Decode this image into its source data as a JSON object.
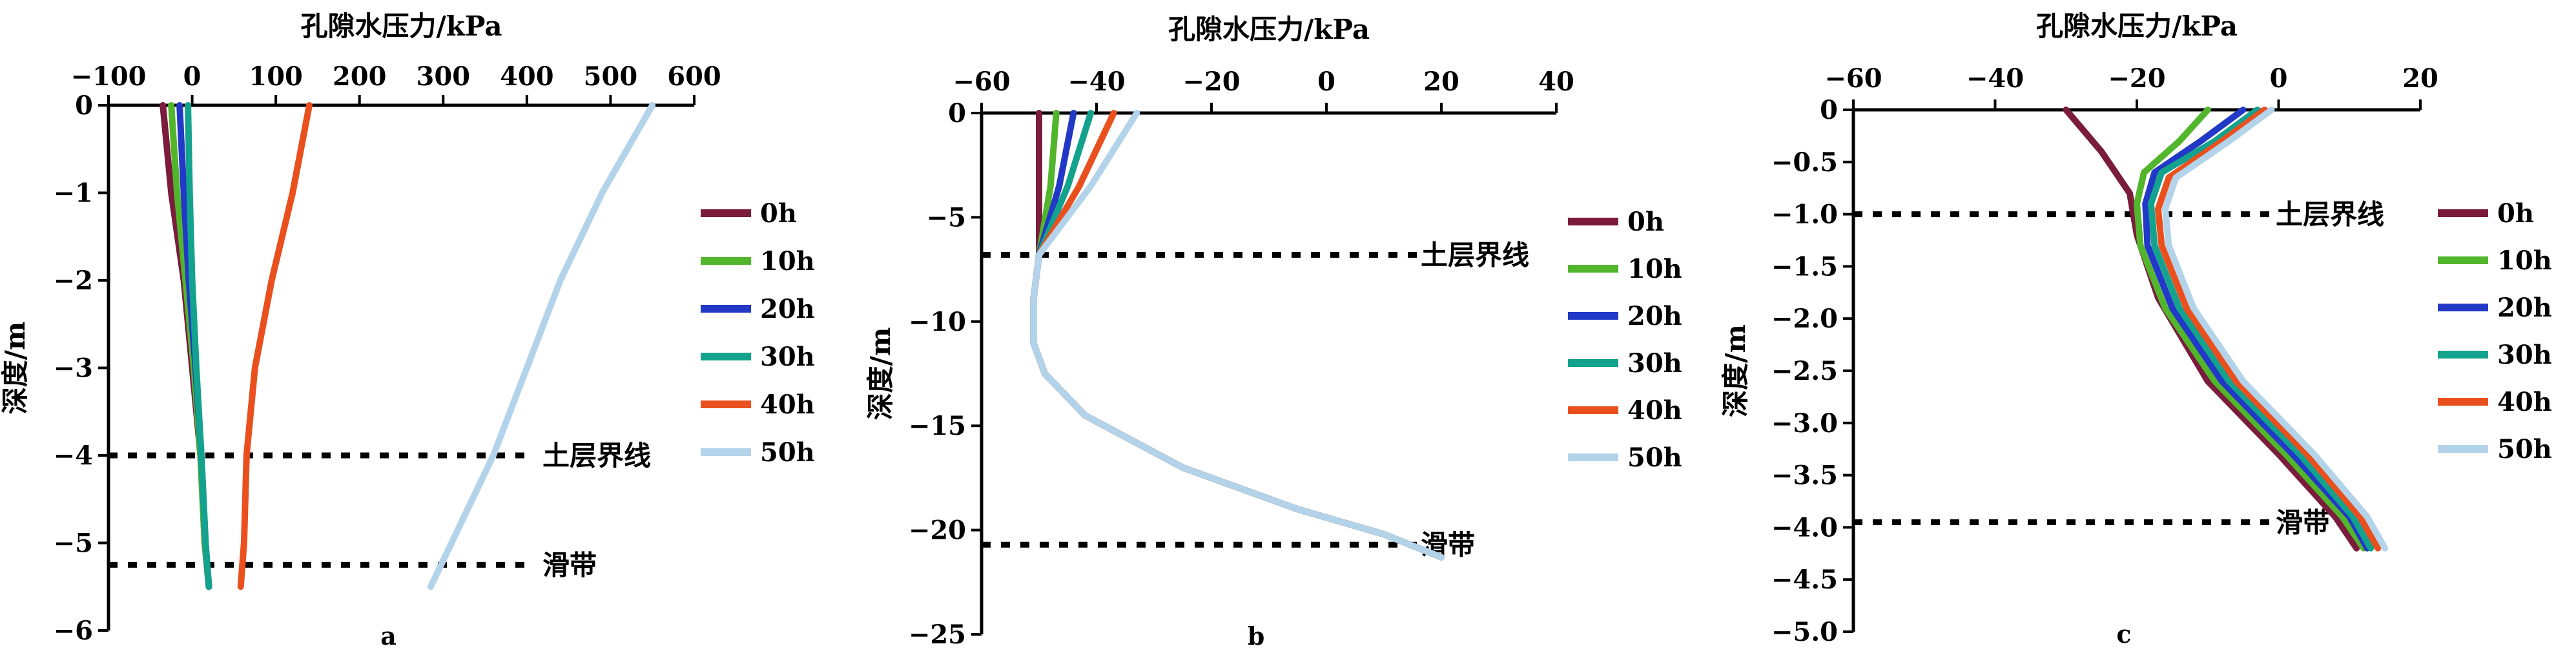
{
  "chart_data": [
    {
      "type": "line",
      "panel_label": "a",
      "xlabel": "孔隙水压力/kPa",
      "ylabel": "深度/m",
      "x_position": "top",
      "xlim": [
        -100,
        600
      ],
      "ylim": [
        -6,
        0
      ],
      "xticks": [
        -100,
        0,
        100,
        200,
        300,
        400,
        500,
        600
      ],
      "xtick_labels": [
        "−100",
        "0",
        "100",
        "200",
        "300",
        "400",
        "500",
        "600"
      ],
      "yticks": [
        0,
        -1,
        -2,
        -3,
        -4,
        -5,
        -6
      ],
      "ytick_labels": [
        "0",
        "−1",
        "−2",
        "−3",
        "−4",
        "−5",
        "−6"
      ],
      "grid": false,
      "legend_position": "right",
      "annotations": [
        {
          "text": "土层界线",
          "y": -4.0
        },
        {
          "text": "滑带",
          "y": -5.25
        }
      ],
      "series": [
        {
          "name": "0h",
          "color": "#7b1c3c",
          "points": [
            [
              -35,
              0
            ],
            [
              -25,
              -1
            ],
            [
              -10,
              -2
            ],
            [
              0,
              -3
            ],
            [
              10,
              -4
            ],
            [
              15,
              -5
            ],
            [
              20,
              -5.5
            ]
          ]
        },
        {
          "name": "10h",
          "color": "#52b62c",
          "points": [
            [
              -25,
              0
            ],
            [
              -18,
              -1
            ],
            [
              -8,
              -2
            ],
            [
              2,
              -3
            ],
            [
              10,
              -4
            ],
            [
              15,
              -5
            ],
            [
              20,
              -5.5
            ]
          ]
        },
        {
          "name": "20h",
          "color": "#2238c6",
          "points": [
            [
              -15,
              0
            ],
            [
              -10,
              -1
            ],
            [
              -4,
              -2
            ],
            [
              4,
              -3
            ],
            [
              11,
              -4
            ],
            [
              16,
              -5
            ],
            [
              20,
              -5.5
            ]
          ]
        },
        {
          "name": "30h",
          "color": "#13a28d",
          "points": [
            [
              -5,
              0
            ],
            [
              -3,
              -1
            ],
            [
              0,
              -2
            ],
            [
              5,
              -3
            ],
            [
              11,
              -4
            ],
            [
              16,
              -5
            ],
            [
              20,
              -5.5
            ]
          ]
        },
        {
          "name": "40h",
          "color": "#e9501e",
          "points": [
            [
              140,
              0
            ],
            [
              120,
              -1
            ],
            [
              95,
              -2
            ],
            [
              75,
              -3
            ],
            [
              65,
              -4
            ],
            [
              62,
              -5
            ],
            [
              58,
              -5.5
            ]
          ]
        },
        {
          "name": "50h",
          "color": "#b3d3ea",
          "points": [
            [
              550,
              0
            ],
            [
              490,
              -1
            ],
            [
              440,
              -2
            ],
            [
              400,
              -3
            ],
            [
              360,
              -4
            ],
            [
              310,
              -5
            ],
            [
              285,
              -5.5
            ]
          ]
        }
      ]
    },
    {
      "type": "line",
      "panel_label": "b",
      "xlabel": "孔隙水压力/kPa",
      "ylabel": "深度/m",
      "x_position": "top",
      "xlim": [
        -60,
        40
      ],
      "ylim": [
        -25,
        0
      ],
      "xticks": [
        -60,
        -40,
        -20,
        0,
        20,
        40
      ],
      "xtick_labels": [
        "−60",
        "−40",
        "−20",
        "0",
        "20",
        "40"
      ],
      "yticks": [
        0,
        -5,
        -10,
        -15,
        -20,
        -25
      ],
      "ytick_labels": [
        "0",
        "−5",
        "−10",
        "−15",
        "−20",
        "−25"
      ],
      "grid": false,
      "legend_position": "right",
      "annotations": [
        {
          "text": "土层界线",
          "y": -6.8
        },
        {
          "text": "滑带",
          "y": -20.7
        }
      ],
      "series": [
        {
          "name": "0h",
          "color": "#7b1c3c",
          "points": [
            [
              -50,
              0
            ],
            [
              -50,
              -3
            ],
            [
              -50,
              -6.8
            ],
            [
              -51,
              -9
            ],
            [
              -51,
              -11
            ],
            [
              -49,
              -12.5
            ],
            [
              -42,
              -14.5
            ],
            [
              -25,
              -17
            ],
            [
              -5,
              -19
            ],
            [
              10,
              -20.2
            ],
            [
              20,
              -21.3
            ]
          ]
        },
        {
          "name": "10h",
          "color": "#52b62c",
          "points": [
            [
              -47,
              0
            ],
            [
              -48,
              -3.5
            ],
            [
              -50,
              -6.8
            ],
            [
              -51,
              -9
            ],
            [
              -51,
              -11
            ],
            [
              -49,
              -12.5
            ],
            [
              -42,
              -14.5
            ],
            [
              -25,
              -17
            ],
            [
              -5,
              -19
            ],
            [
              10,
              -20.2
            ],
            [
              20,
              -21.3
            ]
          ]
        },
        {
          "name": "20h",
          "color": "#2238c6",
          "points": [
            [
              -44,
              0
            ],
            [
              -46.5,
              -3.5
            ],
            [
              -50,
              -6.8
            ],
            [
              -51,
              -9
            ],
            [
              -51,
              -11
            ],
            [
              -49,
              -12.5
            ],
            [
              -42,
              -14.5
            ],
            [
              -25,
              -17
            ],
            [
              -5,
              -19
            ],
            [
              10,
              -20.2
            ],
            [
              20,
              -21.3
            ]
          ]
        },
        {
          "name": "30h",
          "color": "#13a28d",
          "points": [
            [
              -41,
              0
            ],
            [
              -45,
              -3.5
            ],
            [
              -50,
              -6.8
            ],
            [
              -51,
              -9
            ],
            [
              -51,
              -11
            ],
            [
              -49,
              -12.5
            ],
            [
              -42,
              -14.5
            ],
            [
              -25,
              -17
            ],
            [
              -5,
              -19
            ],
            [
              10,
              -20.2
            ],
            [
              20,
              -21.3
            ]
          ]
        },
        {
          "name": "40h",
          "color": "#e9501e",
          "points": [
            [
              -37,
              0
            ],
            [
              -43,
              -3.5
            ],
            [
              -50,
              -6.8
            ],
            [
              -51,
              -9
            ],
            [
              -51,
              -11
            ],
            [
              -49,
              -12.5
            ],
            [
              -42,
              -14.5
            ],
            [
              -25,
              -17
            ],
            [
              -5,
              -19
            ],
            [
              10,
              -20.2
            ],
            [
              20,
              -21.3
            ]
          ]
        },
        {
          "name": "50h",
          "color": "#b3d3ea",
          "points": [
            [
              -33,
              0
            ],
            [
              -41,
              -3.5
            ],
            [
              -50,
              -6.8
            ],
            [
              -51,
              -9
            ],
            [
              -51,
              -11
            ],
            [
              -49,
              -12.5
            ],
            [
              -42,
              -14.5
            ],
            [
              -25,
              -17
            ],
            [
              -5,
              -19
            ],
            [
              10,
              -20.2
            ],
            [
              20,
              -21.3
            ]
          ]
        }
      ]
    },
    {
      "type": "line",
      "panel_label": "c",
      "xlabel": "孔隙水压力/kPa",
      "ylabel": "深度/m",
      "x_position": "top",
      "xlim": [
        -60,
        20
      ],
      "ylim": [
        -5,
        0
      ],
      "xticks": [
        -60,
        -40,
        -20,
        0,
        20
      ],
      "xtick_labels": [
        "−60",
        "−40",
        "−20",
        "0",
        "20"
      ],
      "yticks": [
        0,
        -0.5,
        -1.0,
        -1.5,
        -2.0,
        -2.5,
        -3.0,
        -3.5,
        -4.0,
        -4.5,
        -5.0
      ],
      "ytick_labels": [
        "0",
        "−0.5",
        "−1.0",
        "−1.5",
        "−2.0",
        "−2.5",
        "−3.0",
        "−3.5",
        "−4.0",
        "−4.5",
        "−5.0"
      ],
      "grid": false,
      "legend_position": "right",
      "annotations": [
        {
          "text": "土层界线",
          "y": -1.0
        },
        {
          "text": "滑带",
          "y": -3.95
        }
      ],
      "series": [
        {
          "name": "0h",
          "color": "#7b1c3c",
          "points": [
            [
              -30,
              0
            ],
            [
              -25,
              -0.4
            ],
            [
              -21,
              -0.8
            ],
            [
              -20,
              -1.2
            ],
            [
              -17,
              -1.8
            ],
            [
              -10,
              -2.6
            ],
            [
              0,
              -3.3
            ],
            [
              8,
              -3.9
            ],
            [
              11,
              -4.2
            ]
          ]
        },
        {
          "name": "10h",
          "color": "#52b62c",
          "points": [
            [
              -10,
              0
            ],
            [
              -14,
              -0.3
            ],
            [
              -19,
              -0.6
            ],
            [
              -20,
              -0.9
            ],
            [
              -19.5,
              -1.3
            ],
            [
              -16,
              -1.9
            ],
            [
              -9,
              -2.6
            ],
            [
              1,
              -3.3
            ],
            [
              9,
              -3.9
            ],
            [
              12,
              -4.2
            ]
          ]
        },
        {
          "name": "20h",
          "color": "#2238c6",
          "points": [
            [
              -5,
              0
            ],
            [
              -11,
              -0.3
            ],
            [
              -17.5,
              -0.6
            ],
            [
              -18.8,
              -0.9
            ],
            [
              -18.5,
              -1.3
            ],
            [
              -15,
              -1.9
            ],
            [
              -8,
              -2.6
            ],
            [
              2,
              -3.3
            ],
            [
              10,
              -3.9
            ],
            [
              12.5,
              -4.2
            ]
          ]
        },
        {
          "name": "30h",
          "color": "#13a28d",
          "points": [
            [
              -3,
              0
            ],
            [
              -9,
              -0.3
            ],
            [
              -16.5,
              -0.6
            ],
            [
              -18,
              -0.9
            ],
            [
              -17.5,
              -1.3
            ],
            [
              -14,
              -1.9
            ],
            [
              -7,
              -2.6
            ],
            [
              3,
              -3.3
            ],
            [
              10.5,
              -3.9
            ],
            [
              13,
              -4.2
            ]
          ]
        },
        {
          "name": "40h",
          "color": "#e9501e",
          "points": [
            [
              -2,
              0
            ],
            [
              -8,
              -0.3
            ],
            [
              -15.5,
              -0.65
            ],
            [
              -17,
              -0.95
            ],
            [
              -16.5,
              -1.3
            ],
            [
              -13,
              -1.9
            ],
            [
              -6,
              -2.6
            ],
            [
              4,
              -3.3
            ],
            [
              11.5,
              -3.9
            ],
            [
              14,
              -4.2
            ]
          ]
        },
        {
          "name": "50h",
          "color": "#b3d3ea",
          "points": [
            [
              -1,
              0
            ],
            [
              -7,
              -0.3
            ],
            [
              -14.5,
              -0.65
            ],
            [
              -16,
              -0.95
            ],
            [
              -15.5,
              -1.3
            ],
            [
              -12,
              -1.9
            ],
            [
              -5,
              -2.6
            ],
            [
              5,
              -3.3
            ],
            [
              12.5,
              -3.9
            ],
            [
              15,
              -4.2
            ]
          ]
        }
      ]
    }
  ]
}
